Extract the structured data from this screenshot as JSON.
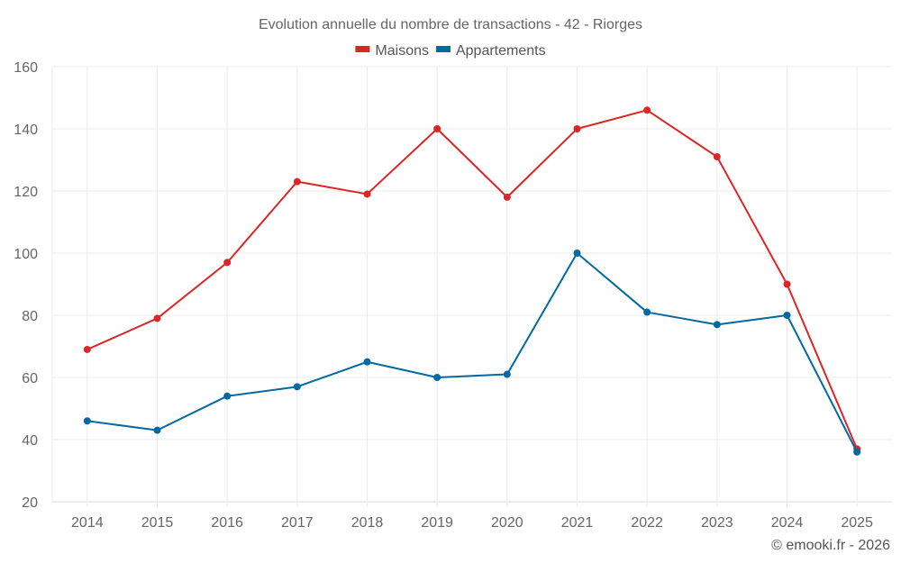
{
  "chart_data": {
    "type": "line",
    "title": "Evolution annuelle du nombre de transactions - 42 - Riorges",
    "xlabel": "",
    "ylabel": "",
    "categories": [
      "2014",
      "2015",
      "2016",
      "2017",
      "2018",
      "2019",
      "2020",
      "2021",
      "2022",
      "2023",
      "2024",
      "2025"
    ],
    "series": [
      {
        "name": "Maisons",
        "color": "#dc2626",
        "values": [
          69,
          79,
          97,
          123,
          119,
          140,
          118,
          140,
          146,
          131,
          90,
          37
        ]
      },
      {
        "name": "Appartements",
        "color": "#0369a1",
        "values": [
          46,
          43,
          54,
          57,
          65,
          60,
          61,
          100,
          81,
          77,
          80,
          36
        ]
      }
    ],
    "ylim": [
      20,
      160
    ],
    "yticks": [
      "20",
      "40",
      "60",
      "80",
      "100",
      "120",
      "140",
      "160"
    ],
    "grid": true,
    "legend_position": "top-center",
    "credit": "© emooki.fr - 2026"
  }
}
